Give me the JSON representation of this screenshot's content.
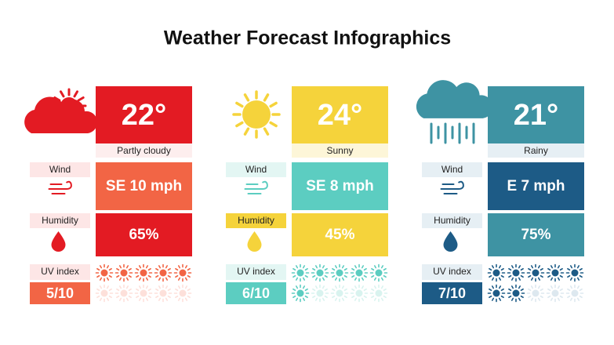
{
  "title": "Weather Forecast Infographics",
  "cards": [
    {
      "temperature": "22°",
      "condition": "Partly cloudy",
      "wind": {
        "label": "Wind",
        "value": "SE 10 mph"
      },
      "humidity": {
        "label": "Humidity",
        "value": "65%"
      },
      "uv_index": {
        "label": "UV index",
        "value": "5/10"
      }
    },
    {
      "temperature": "24°",
      "condition": "Sunny",
      "wind": {
        "label": "Wind",
        "value": "SE 8 mph"
      },
      "humidity": {
        "label": "Humidity",
        "value": "45%"
      },
      "uv_index": {
        "label": "UV index",
        "value": "6/10"
      }
    },
    {
      "temperature": "21°",
      "condition": "Rainy",
      "wind": {
        "label": "Wind",
        "value": "E 7 mph"
      },
      "humidity": {
        "label": "Humidity",
        "value": "75%"
      },
      "uv_index": {
        "label": "UV index",
        "value": "7/10"
      }
    }
  ]
}
